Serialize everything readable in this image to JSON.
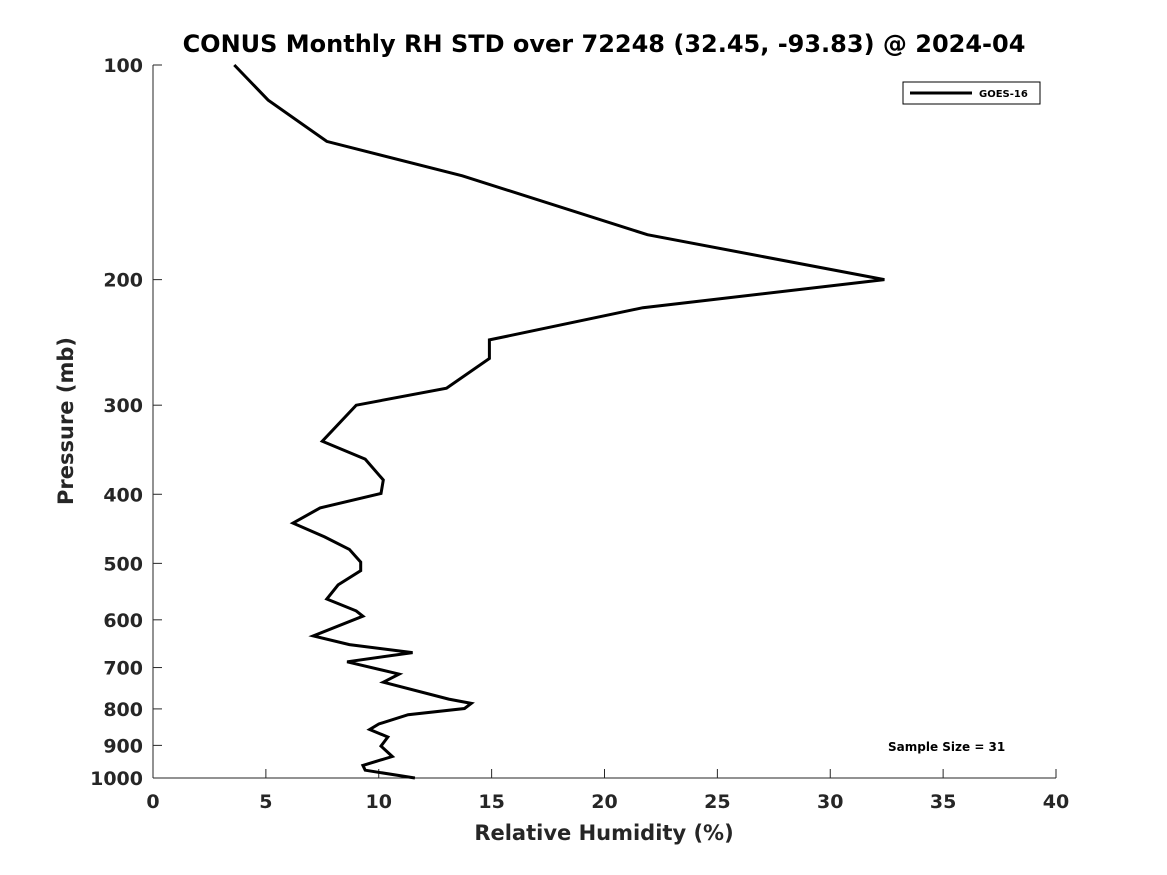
{
  "chart_data": {
    "type": "line",
    "title": "CONUS Monthly RH STD over 72248 (32.45, -93.83) @ 2024-04",
    "xlabel": "Relative Humidity (%)",
    "ylabel": "Pressure (mb)",
    "xlim": [
      0,
      40
    ],
    "ylim": [
      1000,
      100
    ],
    "yscale": "log",
    "grid": false,
    "legend_position": "top-right",
    "x_ticks": [
      0,
      5,
      10,
      15,
      20,
      25,
      30,
      35,
      40
    ],
    "x_tick_labels": [
      "0",
      "5",
      "10",
      "15",
      "20",
      "25",
      "30",
      "35",
      "40"
    ],
    "y_ticks": [
      100,
      200,
      300,
      400,
      500,
      600,
      700,
      800,
      900,
      1000
    ],
    "y_tick_labels": [
      "100",
      "200",
      "300",
      "400",
      "500",
      "600",
      "700",
      "800",
      "900",
      "1000"
    ],
    "annotation": "Sample Size = 31",
    "series": [
      {
        "name": "GOES-16",
        "color": "#000000",
        "x": [
          3.6,
          5.1,
          7.7,
          13.7,
          21.9,
          32.4,
          21.7,
          14.9,
          14.9,
          13.0,
          9.0,
          7.5,
          9.4,
          10.2,
          10.1,
          7.4,
          6.2,
          7.6,
          8.7,
          9.2,
          9.2,
          8.2,
          7.7,
          9.0,
          9.3,
          7.1,
          8.7,
          11.5,
          8.6,
          10.9,
          10.2,
          13.1,
          14.1,
          13.8,
          11.3,
          10.0,
          9.6,
          10.4,
          10.1,
          10.6,
          9.3,
          9.4,
          11.6
        ],
        "y": [
          100,
          112,
          128,
          143,
          173,
          200,
          219,
          243,
          258,
          284,
          300,
          337,
          357,
          382,
          399,
          418,
          439,
          459,
          478,
          498,
          512,
          536,
          561,
          583,
          593,
          632,
          650,
          667,
          687,
          715,
          734,
          775,
          786,
          799,
          815,
          840,
          855,
          876,
          902,
          933,
          960,
          975,
          1000
        ]
      }
    ]
  }
}
